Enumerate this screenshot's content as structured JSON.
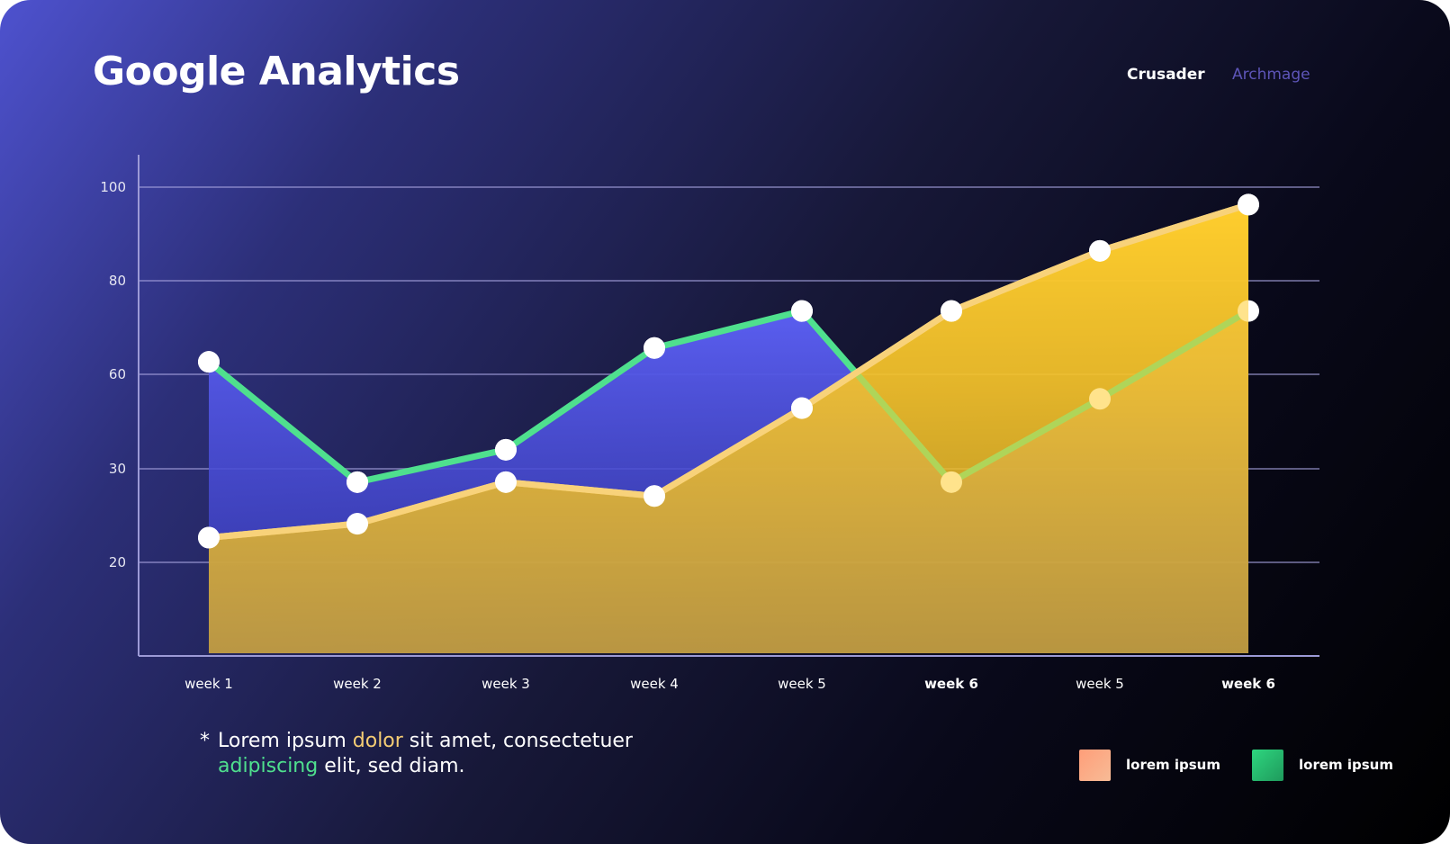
{
  "header": {
    "title": "Google Analytics",
    "tabs": [
      {
        "label": "Crusader",
        "active": true
      },
      {
        "label": "Archmage",
        "active": false
      }
    ]
  },
  "chart_data": {
    "type": "area",
    "categories": [
      "week 1",
      "week 2",
      "week 3",
      "week 4",
      "week 5",
      "week 6",
      "week 5",
      "week 6"
    ],
    "y_ticks": [
      "100",
      "80",
      "60",
      "30",
      "20"
    ],
    "series": [
      {
        "values": [
          63,
          37,
          44,
          66,
          74,
          37,
          55,
          74
        ],
        "color": "#4fe08e",
        "fill": "#5356e3"
      },
      {
        "values": [
          25,
          28,
          37,
          34,
          53,
          74,
          87,
          97
        ],
        "color": "#f8d27a",
        "fill": "#ffcc2e"
      }
    ],
    "grid": true
  },
  "footnote": {
    "star": "*",
    "line1_pre": "Lorem ipsum ",
    "line1_hl": "dolor",
    "line1_post": " sit amet, consectetuer",
    "line2_hl": "adipiscing",
    "line2_post": " elit, sed diam."
  },
  "legend": [
    {
      "label": "lorem ipsum",
      "color_from": "#ff9e79",
      "color_to": "#f7bb96"
    },
    {
      "label": "lorem ipsum",
      "color_from": "#2ed67f",
      "color_to": "#1f9a5c"
    }
  ]
}
